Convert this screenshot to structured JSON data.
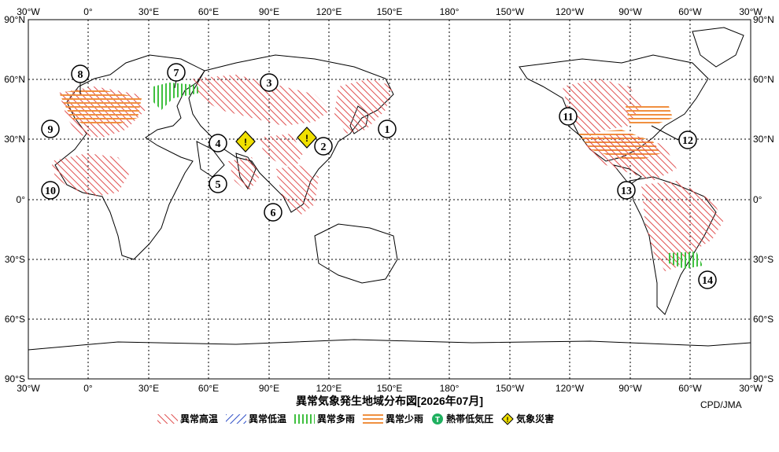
{
  "title": "異常気象発生地域分布図[2026年07月]",
  "credit": "CPD/JMA",
  "axis": {
    "lon_ticks": [
      "30°W",
      "0°",
      "30°E",
      "60°E",
      "90°E",
      "120°E",
      "150°E",
      "180°",
      "150°W",
      "120°W",
      "90°W",
      "60°W",
      "30°W"
    ],
    "lat_ticks_left": [
      "90°N",
      "60°N",
      "30°N",
      "0°",
      "30°S",
      "60°S",
      "90°S"
    ],
    "lat_ticks_right": [
      "90°N",
      "60°N",
      "30°N",
      "0°",
      "30°S",
      "60°S",
      "90°S"
    ]
  },
  "legend": [
    {
      "label": "異常高温",
      "color": "#e05050",
      "icon": "diag-hatch-red"
    },
    {
      "label": "異常低温",
      "color": "#3050c8",
      "icon": "diag-hatch-blue"
    },
    {
      "label": "異常多雨",
      "color": "#40c040",
      "icon": "vertical-hatch-green"
    },
    {
      "label": "異常少雨",
      "color": "#f09040",
      "icon": "horizontal-hatch-orange"
    },
    {
      "label": "熱帯低気圧",
      "color": "#20b060",
      "icon": "T-circle"
    },
    {
      "label": "気象災害",
      "color": "#f0e000",
      "icon": "warning-diamond"
    }
  ],
  "region_numbers": [
    "1",
    "2",
    "3",
    "4",
    "5",
    "6",
    "7",
    "8",
    "9",
    "10",
    "11",
    "12",
    "13",
    "14"
  ]
}
